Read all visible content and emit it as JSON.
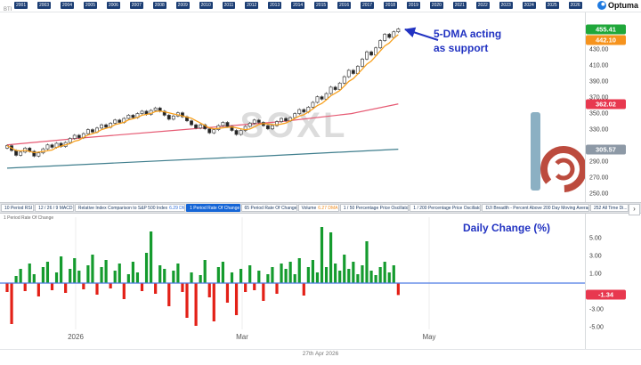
{
  "header": {
    "symbol_label": "BTI",
    "years": [
      "2001",
      "2003",
      "2004",
      "2005",
      "2006",
      "2007",
      "2008",
      "2009",
      "2010",
      "2011",
      "2012",
      "2013",
      "2014",
      "2015",
      "2016",
      "2017",
      "2018",
      "2019",
      "2020",
      "2021",
      "2022",
      "2023",
      "2024",
      "2025",
      "2026"
    ],
    "logo_text": "Optuma"
  },
  "price_panel": {
    "watermark": "SOXL",
    "annotation": {
      "line1": "5-DMA acting",
      "line2": "as support"
    },
    "y_ticks": [
      430,
      410,
      390,
      370,
      350,
      330,
      290,
      270,
      250
    ],
    "badges": [
      {
        "label": "455.41",
        "value": 455.41,
        "color": "#1fa73a"
      },
      {
        "label": "442.10",
        "value": 442.1,
        "color": "#f6931d"
      },
      {
        "label": "362.02",
        "value": 362.02,
        "color": "#e8384f"
      },
      {
        "label": "305.57",
        "value": 305.57,
        "color": "#8d99a6"
      }
    ]
  },
  "tool_tabs": [
    {
      "label": "10 Period RSI",
      "selected": false
    },
    {
      "label": "12 / 26 / 9 MACD",
      "selected": false
    },
    {
      "label": "Relative Index Comparison to S&P 500 Index",
      "suffix": "6.29 DMA",
      "suffix_color": "#2b6bd8",
      "selected": false
    },
    {
      "label": "1 Period Rate Of Change",
      "selected": true
    },
    {
      "label": "65 Period Rate Of Change",
      "selected": false
    },
    {
      "label": "Volume",
      "suffix": "6.27 DMA",
      "suffix_color": "#f08c1e",
      "selected": false
    },
    {
      "label": "1 / 50 Percentage Price Oscillator",
      "selected": false
    },
    {
      "label": "1 / 200 Percentage Price Oscillator",
      "selected": false
    },
    {
      "label": "DJI Breadth - Percent Above 200 Day Moving Average",
      "selected": false
    },
    {
      "label": "252 All Time Di...",
      "selected": false
    }
  ],
  "tab_scroll_icon": "›",
  "roc_panel": {
    "title": "1 Period Rate Of Change",
    "annotation": "Daily Change (%)",
    "y_ticks": [
      5,
      3,
      1,
      -3,
      -5
    ],
    "badge": {
      "label": "-1.34",
      "value": -1.34,
      "color": "#e8384f"
    },
    "x_labels": [
      {
        "text": "2026",
        "x": 85
      },
      {
        "text": "Mar",
        "x": 272
      },
      {
        "text": "May",
        "x": 482
      }
    ]
  },
  "footer": {
    "date": "27th Apr 2026"
  },
  "chart_data": [
    {
      "type": "candlestick",
      "symbol": "SOXL",
      "ylim": [
        243,
        465
      ],
      "closes": [
        310,
        304,
        298,
        302,
        307,
        303,
        297,
        301,
        306,
        311,
        308,
        313,
        309,
        314,
        319,
        323,
        320,
        325,
        330,
        327,
        332,
        336,
        333,
        338,
        342,
        339,
        344,
        348,
        345,
        350,
        353,
        349,
        354,
        357,
        353,
        348,
        343,
        347,
        351,
        346,
        341,
        336,
        332,
        336,
        331,
        326,
        330,
        335,
        339,
        334,
        329,
        324,
        329,
        334,
        338,
        342,
        339,
        335,
        331,
        335,
        340,
        344,
        341,
        345,
        350,
        355,
        352,
        358,
        364,
        371,
        368,
        375,
        383,
        380,
        388,
        396,
        404,
        400,
        409,
        418,
        427,
        423,
        432,
        441,
        449,
        445,
        452,
        455.41
      ],
      "colors": {
        "up": "#ffffff",
        "down": "#222222",
        "outline": "#444444"
      },
      "overlays": [
        {
          "name": "5-day-moving-average",
          "type": "sma",
          "period": 5,
          "color": "#f7a01d"
        },
        {
          "name": "medium-moving-average",
          "type": "points",
          "color": "#e65a73",
          "points": [
            [
              0,
              311
            ],
            [
              0.2,
              320
            ],
            [
              0.45,
              330
            ],
            [
              0.7,
              340
            ],
            [
              0.88,
              350
            ],
            [
              1,
              362.02
            ]
          ]
        },
        {
          "name": "long-moving-average",
          "type": "points",
          "color": "#3f7e8d",
          "points": [
            [
              0,
              282
            ],
            [
              0.3,
              289
            ],
            [
              0.65,
              297
            ],
            [
              1,
              305.57
            ]
          ]
        }
      ]
    },
    {
      "type": "bar",
      "name": "1 Period Rate Of Change (%)",
      "ylim": [
        -6.2,
        7.2
      ],
      "values": [
        -1.0,
        -4.6,
        0.8,
        1.6,
        -0.9,
        2.2,
        1.0,
        -1.5,
        1.8,
        2.4,
        -0.8,
        1.2,
        3.0,
        -1.1,
        1.6,
        2.8,
        1.4,
        -0.7,
        2.0,
        3.2,
        -1.3,
        1.8,
        2.6,
        -0.6,
        1.4,
        2.2,
        -1.8,
        1.0,
        2.4,
        1.2,
        -0.9,
        3.4,
        5.8,
        -1.2,
        2.0,
        1.6,
        -2.6,
        1.4,
        2.2,
        -1.0,
        -3.9,
        1.2,
        -4.8,
        0.9,
        2.6,
        -1.6,
        -4.3,
        1.8,
        2.4,
        -2.2,
        1.2,
        -3.6,
        1.6,
        -1.0,
        2.0,
        -0.8,
        1.4,
        -2.0,
        1.0,
        1.8,
        -1.2,
        2.2,
        1.6,
        2.4,
        1.0,
        2.8,
        -1.4,
        1.8,
        2.6,
        1.2,
        6.3,
        1.8,
        5.7,
        2.2,
        1.4,
        3.2,
        1.6,
        2.4,
        1.0,
        2.0,
        4.7,
        1.4,
        0.9,
        1.8,
        2.4,
        1.2,
        2.0,
        -1.34
      ],
      "colors": {
        "up": "#159b2e",
        "down": "#e32017",
        "zero_line": "#4b79e4"
      }
    }
  ]
}
